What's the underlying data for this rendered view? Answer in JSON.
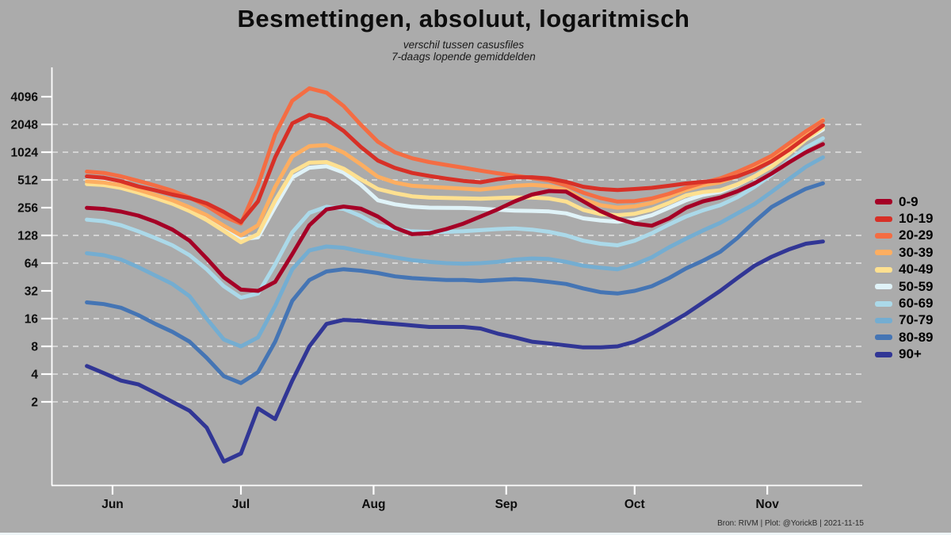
{
  "title": "Besmettingen, absoluut, logaritmisch",
  "subtitle_line1": "verschil tussen casusfiles",
  "subtitle_line2": "7-daags lopende gemiddelden",
  "attribution": "Bron: RIVM | Plot: @YorickB  |  2021-11-15",
  "colors": {
    "background": "#ababab",
    "axis": "#ffffff",
    "gridline": "#e4e4e4",
    "label_text": "#0d0d0d",
    "bottom_strip": "#eef5f7"
  },
  "chart_data": {
    "type": "line",
    "yscale": "log2",
    "title": "Besmettingen, absoluut, logaritmisch",
    "x_unit": "days since 2021-05-26, data ends 2021-11-14",
    "x": [
      0,
      4,
      8,
      12,
      16,
      20,
      24,
      28,
      32,
      36,
      40,
      44,
      48,
      52,
      56,
      60,
      64,
      68,
      72,
      76,
      80,
      84,
      88,
      92,
      96,
      100,
      104,
      108,
      112,
      116,
      120,
      124,
      128,
      132,
      136,
      140,
      144,
      148,
      152,
      156,
      160,
      164,
      168,
      172
    ],
    "y_ticks": [
      4096,
      2048,
      1024,
      512,
      256,
      128,
      64,
      32,
      16,
      8,
      4,
      2
    ],
    "gridline_values": [
      2048,
      1024,
      512,
      128,
      64,
      16,
      8,
      4,
      2
    ],
    "ylim": [
      1.1,
      6000
    ],
    "x_ticks": [
      {
        "label": "Jun",
        "day": 6
      },
      {
        "label": "Jul",
        "day": 36
      },
      {
        "label": "Aug",
        "day": 67
      },
      {
        "label": "Sep",
        "day": 98
      },
      {
        "label": "Oct",
        "day": 128
      },
      {
        "label": "Nov",
        "day": 159
      }
    ],
    "legend_position": "right",
    "series": [
      {
        "name": "0-9",
        "color": "#a50026",
        "values": [
          255,
          248,
          232,
          210,
          180,
          148,
          112,
          72,
          45,
          33,
          32,
          40,
          80,
          165,
          245,
          263,
          250,
          205,
          155,
          132,
          135,
          150,
          172,
          205,
          245,
          300,
          355,
          388,
          382,
          300,
          235,
          195,
          172,
          163,
          195,
          255,
          300,
          330,
          385,
          470,
          600,
          790,
          1020,
          1250
        ]
      },
      {
        "name": "10-19",
        "color": "#d73027",
        "values": [
          560,
          540,
          495,
          435,
          395,
          355,
          325,
          285,
          230,
          178,
          300,
          900,
          2100,
          2600,
          2330,
          1740,
          1170,
          830,
          690,
          610,
          565,
          530,
          500,
          482,
          520,
          545,
          548,
          530,
          488,
          432,
          408,
          398,
          408,
          420,
          442,
          468,
          488,
          505,
          560,
          660,
          815,
          1080,
          1480,
          2000
        ]
      },
      {
        "name": "20-29",
        "color": "#f46d43",
        "values": [
          630,
          610,
          560,
          500,
          445,
          390,
          330,
          268,
          205,
          172,
          450,
          1600,
          3700,
          5050,
          4530,
          3240,
          2040,
          1330,
          1020,
          880,
          800,
          744,
          694,
          645,
          605,
          570,
          538,
          505,
          445,
          372,
          325,
          298,
          302,
          322,
          362,
          420,
          478,
          532,
          625,
          755,
          935,
          1270,
          1720,
          2250
        ]
      },
      {
        "name": "30-39",
        "color": "#fdae61",
        "values": [
          495,
          480,
          448,
          400,
          352,
          308,
          258,
          212,
          163,
          128,
          165,
          430,
          920,
          1190,
          1225,
          1015,
          758,
          554,
          480,
          442,
          430,
          421,
          412,
          402,
          420,
          442,
          452,
          440,
          398,
          315,
          272,
          256,
          264,
          288,
          338,
          398,
          448,
          482,
          562,
          682,
          862,
          1160,
          1660,
          2300
        ]
      },
      {
        "name": "40-49",
        "color": "#fee090",
        "values": [
          462,
          450,
          418,
          372,
          325,
          282,
          235,
          188,
          143,
          108,
          132,
          305,
          625,
          788,
          800,
          678,
          520,
          408,
          368,
          340,
          330,
          326,
          323,
          320,
          325,
          330,
          330,
          322,
          298,
          242,
          218,
          212,
          220,
          244,
          288,
          348,
          378,
          395,
          458,
          558,
          712,
          980,
          1400,
          1900
        ]
      },
      {
        "name": "50-59",
        "color": "#e0f3f8",
        "values": [
          505,
          490,
          448,
          392,
          342,
          298,
          250,
          205,
          155,
          116,
          122,
          262,
          545,
          695,
          720,
          615,
          455,
          308,
          278,
          262,
          256,
          255,
          254,
          250,
          243,
          238,
          236,
          233,
          222,
          196,
          186,
          180,
          190,
          212,
          255,
          308,
          352,
          380,
          452,
          560,
          722,
          990,
          1400,
          1800
        ]
      },
      {
        "name": "60-69",
        "color": "#abd9e9",
        "values": [
          190,
          182,
          165,
          142,
          120,
          100,
          78,
          55,
          36,
          27,
          30,
          62,
          138,
          225,
          262,
          248,
          208,
          164,
          150,
          142,
          140,
          140,
          142,
          146,
          150,
          152,
          148,
          140,
          128,
          112,
          104,
          100,
          112,
          135,
          168,
          205,
          240,
          272,
          332,
          430,
          580,
          820,
          1150,
          1450
        ]
      },
      {
        "name": "70-79",
        "color": "#74add1",
        "values": [
          82,
          78,
          70,
          58,
          47,
          38,
          28,
          16,
          9.5,
          8,
          10,
          22,
          55,
          88,
          97,
          94,
          86,
          80,
          74,
          69,
          66,
          64,
          63,
          64,
          66,
          70,
          72,
          71,
          66,
          60,
          57,
          55,
          62,
          74,
          95,
          118,
          145,
          175,
          222,
          280,
          380,
          520,
          710,
          900
        ]
      },
      {
        "name": "80-89",
        "color": "#4575b4",
        "values": [
          24,
          23,
          21,
          17.5,
          14,
          11.5,
          9,
          6,
          3.8,
          3.2,
          4.2,
          9,
          25,
          42,
          52,
          55,
          53,
          50,
          46,
          44,
          43,
          42,
          42,
          41,
          42,
          43,
          42,
          40,
          38,
          34,
          31,
          30,
          32,
          36,
          44,
          56,
          68,
          85,
          120,
          180,
          260,
          330,
          410,
          470
        ]
      },
      {
        "name": "90+",
        "color": "#313695",
        "values": [
          4.9,
          4.1,
          3.4,
          3.1,
          2.5,
          2.0,
          1.6,
          1.05,
          0.45,
          0.55,
          1.7,
          1.3,
          3.4,
          8,
          14,
          15.5,
          15.2,
          14.5,
          14,
          13.5,
          13,
          13,
          13,
          12.5,
          11,
          10,
          9,
          8.6,
          8.2,
          7.8,
          7.8,
          8,
          9,
          11,
          14,
          18,
          24,
          32,
          44,
          60,
          75,
          90,
          104,
          110
        ]
      }
    ]
  }
}
